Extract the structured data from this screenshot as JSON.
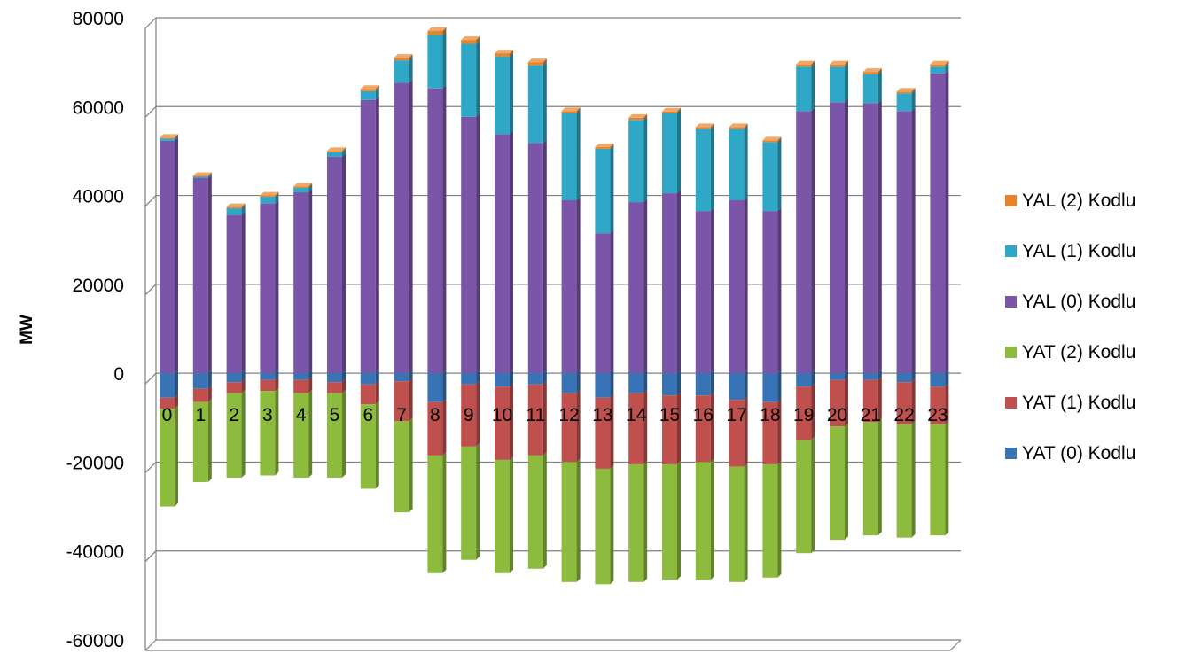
{
  "chart_data": {
    "type": "bar",
    "stacked": true,
    "ylabel": "MW",
    "xlabel": "",
    "ylim": [
      -60000,
      80000
    ],
    "yticks": [
      80000,
      60000,
      40000,
      20000,
      0,
      -20000,
      -40000,
      -60000
    ],
    "grid": true,
    "legend_position": "right",
    "categories": [
      "0",
      "1",
      "2",
      "3",
      "4",
      "5",
      "6",
      "7",
      "8",
      "9",
      "10",
      "11",
      "12",
      "13",
      "14",
      "15",
      "16",
      "17",
      "18",
      "19",
      "20",
      "21",
      "22",
      "23"
    ],
    "series": [
      {
        "name": "YAL (2) Kodlu",
        "color": "#E8832A",
        "values": [
          200,
          200,
          300,
          300,
          300,
          300,
          500,
          600,
          900,
          800,
          700,
          700,
          500,
          400,
          500,
          400,
          400,
          400,
          400,
          500,
          500,
          500,
          400,
          500
        ]
      },
      {
        "name": "YAL (1) Kodlu",
        "color": "#2FA7C7",
        "values": [
          500,
          300,
          1500,
          1500,
          1000,
          1000,
          2000,
          5000,
          12000,
          16500,
          17500,
          17500,
          19500,
          19000,
          18500,
          18000,
          18500,
          16000,
          15500,
          10000,
          8000,
          6500,
          4000,
          1500
        ]
      },
      {
        "name": "YAL (0) Kodlu",
        "color": "#7B55A8",
        "values": [
          52300,
          43900,
          35600,
          38200,
          40700,
          48700,
          61500,
          65400,
          64100,
          57700,
          53800,
          51800,
          39000,
          31500,
          38500,
          40500,
          36500,
          39000,
          36500,
          59000,
          61000,
          60800,
          59000,
          67500
        ]
      },
      {
        "name": "YAT (2) Kodlu",
        "color": "#8CBB3E",
        "values": [
          -22000,
          -18000,
          -19000,
          -19000,
          -19000,
          -19000,
          -19000,
          -20500,
          -26500,
          -25500,
          -25500,
          -25500,
          -27000,
          -26000,
          -26500,
          -26000,
          -26500,
          -26000,
          -25500,
          -25500,
          -25500,
          -25500,
          -25500,
          -25000
        ]
      },
      {
        "name": "YAT (1) Kodlu",
        "color": "#C0504D",
        "values": [
          -2500,
          -3000,
          -2500,
          -2500,
          -3000,
          -2500,
          -4500,
          -9000,
          -12000,
          -14000,
          -16500,
          -16000,
          -15500,
          -16000,
          -16000,
          -15500,
          -15000,
          -15000,
          -14000,
          -12000,
          -10500,
          -9500,
          -9500,
          -8500
        ]
      },
      {
        "name": "YAT (0) Kodlu",
        "color": "#3874B5",
        "values": [
          -5500,
          -3500,
          -2000,
          -1500,
          -1500,
          -2000,
          -2500,
          -1800,
          -6500,
          -2500,
          -3000,
          -2500,
          -4500,
          -5500,
          -4500,
          -5000,
          -5000,
          -6000,
          -6500,
          -3000,
          -1500,
          -1500,
          -2000,
          -3000
        ]
      }
    ]
  }
}
